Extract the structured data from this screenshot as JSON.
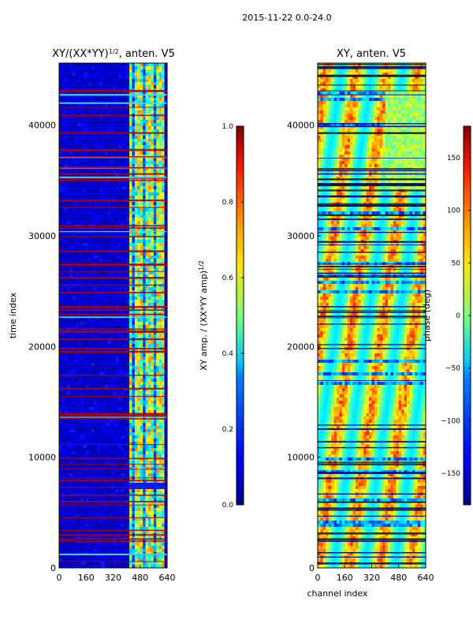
{
  "figure_title": "2015-11-22 0.0-24.0",
  "chart_data": [
    {
      "type": "heatmap",
      "title": "XY/(XX*YY)^1/2, anten. V5",
      "xlabel": "",
      "ylabel": "time index",
      "x_ticks": [
        0,
        160,
        320,
        480,
        640
      ],
      "y_ticks": [
        0,
        10000,
        20000,
        30000,
        40000
      ],
      "xlim": [
        0,
        640
      ],
      "ylim": [
        0,
        45600
      ],
      "colorbar": {
        "label": "XY amp. / (XX*YY amp)^1/2",
        "range": [
          0.0,
          1.0
        ],
        "ticks": [
          0.0,
          0.2,
          0.4,
          0.6,
          0.8,
          1.0
        ],
        "tick_labels": [
          "0.0",
          "0.2",
          "0.4",
          "0.6",
          "0.8",
          "1.0"
        ],
        "colormap": "jet"
      }
    },
    {
      "type": "heatmap",
      "title": "XY, anten. V5",
      "xlabel": "channel index",
      "ylabel": "",
      "x_ticks": [
        0,
        160,
        320,
        480,
        640
      ],
      "y_ticks": [
        0,
        10000,
        20000,
        30000,
        40000
      ],
      "xlim": [
        0,
        640
      ],
      "ylim": [
        0,
        45600
      ],
      "colorbar": {
        "label": "phase (deg)",
        "range": [
          -180,
          180
        ],
        "ticks": [
          150,
          100,
          50,
          0,
          -50,
          -100,
          -150
        ],
        "tick_labels": [
          "150",
          "100",
          "50",
          "0",
          "−50",
          "−100",
          "−150"
        ],
        "colormap": "jet"
      }
    }
  ]
}
